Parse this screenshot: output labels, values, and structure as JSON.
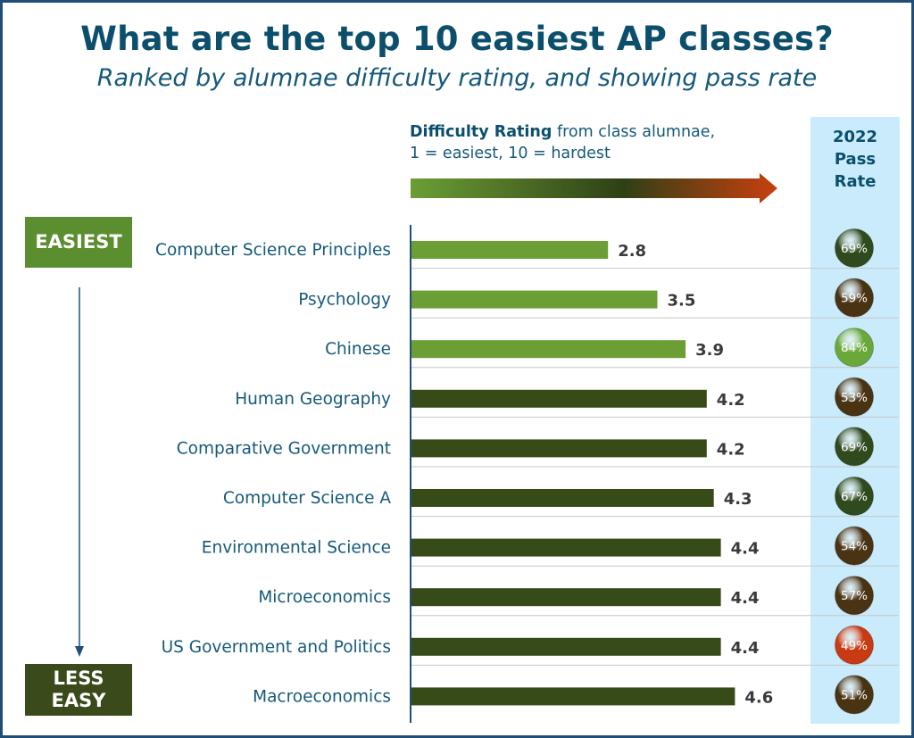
{
  "header": {
    "title": "What are the top 10 easiest AP classes?",
    "subtitle": "Ranked by alumnae difficulty rating, and showing pass rate"
  },
  "legend": {
    "bold": "Difficulty Rating",
    "rest": " from class alumnae,",
    "line2": "1 = easiest, 10 = hardest"
  },
  "pass_header": {
    "line1": "2022",
    "line2": "Pass",
    "line3": "Rate"
  },
  "side": {
    "top_label": "EASIEST",
    "bottom_line1": "LESS",
    "bottom_line2": "EASY"
  },
  "colors": {
    "bar_light": "#6b9e35",
    "bar_dark": "#364b18",
    "gradient_start": "#6b9e35",
    "gradient_mid": "#2f4015",
    "gradient_end": "#c8400f",
    "axis": "#1f4e79",
    "pass_green_light": "#6aa83a",
    "pass_green_dark": "#2f4a1c",
    "pass_brown": "#4a3312",
    "pass_red": "#c83a12"
  },
  "chart_data": {
    "type": "bar",
    "orientation": "horizontal",
    "title": "What are the top 10 easiest AP classes?",
    "subtitle": "Ranked by alumnae difficulty rating, and showing pass rate",
    "xlabel": "Difficulty Rating from class alumnae, 1 = easiest, 10 = hardest",
    "categories": [
      "Computer Science Principles",
      "Psychology",
      "Chinese",
      "Human Geography",
      "Comparative Government",
      "Computer Science A",
      "Environmental Science",
      "Microeconomics",
      "US Government and Politics",
      "Macroeconomics"
    ],
    "values": [
      2.8,
      3.5,
      3.9,
      4.2,
      4.2,
      4.3,
      4.4,
      4.4,
      4.4,
      4.6
    ],
    "value_labels": [
      "2.8",
      "3.5",
      "3.9",
      "4.2",
      "4.2",
      "4.3",
      "4.4",
      "4.4",
      "4.4",
      "4.6"
    ],
    "bar_tone": [
      "light",
      "light",
      "light",
      "dark",
      "dark",
      "dark",
      "dark",
      "dark",
      "dark",
      "dark"
    ],
    "xlim": [
      0,
      5
    ],
    "grid": false,
    "pass_rate": {
      "name": "2022 Pass Rate",
      "values": [
        69,
        59,
        84,
        53,
        69,
        67,
        54,
        57,
        49,
        51
      ],
      "labels": [
        "69%",
        "59%",
        "84%",
        "53%",
        "69%",
        "67%",
        "54%",
        "57%",
        "49%",
        "51%"
      ],
      "tone": [
        "green_dark",
        "brown",
        "green_light",
        "brown",
        "green_dark",
        "green_dark",
        "brown",
        "brown",
        "red",
        "brown"
      ]
    }
  }
}
